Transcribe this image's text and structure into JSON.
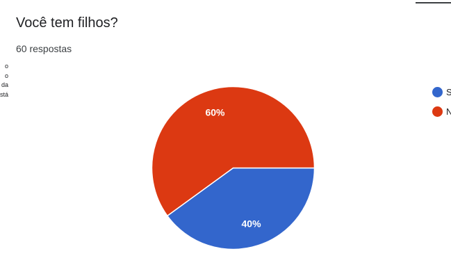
{
  "question": {
    "title": "Você tem filhos?",
    "responses": "60 respostas"
  },
  "left_panel_fragments": [
    "o",
    "o",
    "da",
    "stá"
  ],
  "chart_data": {
    "type": "pie",
    "categories": [
      "Sim",
      "Não"
    ],
    "values": [
      40,
      60
    ],
    "labels": [
      "40%",
      "60%"
    ],
    "colors": [
      "#3366cc",
      "#dc3912"
    ],
    "start_angle_deg": 90,
    "legend_position": "right",
    "title": "Você tem filhos?"
  },
  "legend": {
    "items": [
      {
        "label": "S",
        "color": "#3366cc"
      },
      {
        "label": "N",
        "color": "#dc3912"
      }
    ]
  }
}
